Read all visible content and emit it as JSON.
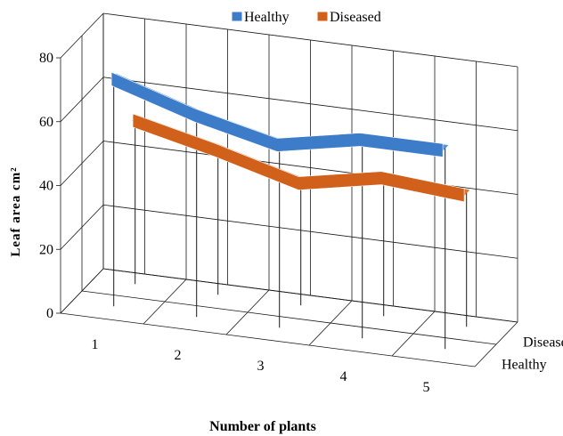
{
  "chart_data": {
    "type": "line",
    "view": "3d",
    "title": "",
    "xlabel": "Number of plants",
    "ylabel": "Leaf area cm²",
    "categories": [
      "1",
      "2",
      "3",
      "4",
      "5"
    ],
    "depth_categories": [
      "Healthy",
      "Diseased"
    ],
    "y_ticks": [
      "0",
      "20",
      "40",
      "60",
      "80"
    ],
    "ylim": [
      0,
      80
    ],
    "grid": true,
    "legend_position": "top",
    "series": [
      {
        "name": "Healthy",
        "color": "#3d7cc9",
        "values": [
          72,
          64,
          58,
          63,
          63
        ]
      },
      {
        "name": "Diseased",
        "color": "#d1601a",
        "values": [
          52,
          46,
          39,
          44,
          42
        ]
      }
    ]
  }
}
